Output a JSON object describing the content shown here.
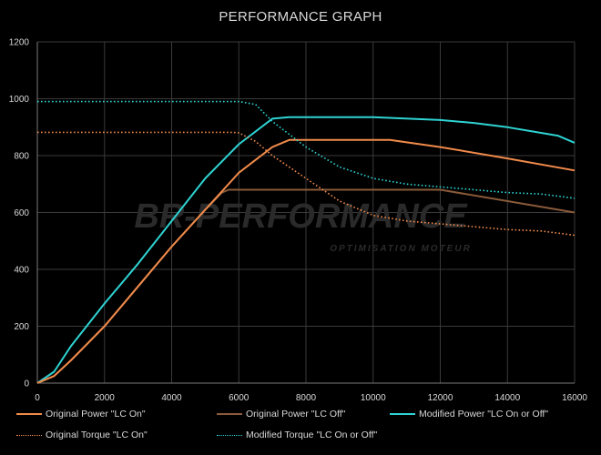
{
  "chart_data": {
    "type": "line",
    "title": "PERFORMANCE GRAPH",
    "xlabel": "",
    "ylabel": "",
    "xlim": [
      0,
      16000
    ],
    "ylim": [
      0,
      1200
    ],
    "xticks": [
      0,
      2000,
      4000,
      6000,
      8000,
      10000,
      12000,
      14000,
      16000
    ],
    "yticks": [
      0,
      200,
      400,
      600,
      800,
      1000,
      1200
    ],
    "grid": true,
    "legend_position": "bottom",
    "watermark": {
      "main": "BR-PERFORMANCE",
      "sub": "OPTIMISATION MOTEUR"
    },
    "series": [
      {
        "name": "Original Power \"LC On\"",
        "color": "#f08a4b",
        "style": "solid",
        "x": [
          0,
          500,
          1000,
          2000,
          3000,
          4000,
          5000,
          6000,
          7000,
          7500,
          8000,
          10500,
          12000,
          14000,
          16000
        ],
        "y": [
          0,
          25,
          80,
          200,
          340,
          480,
          610,
          740,
          830,
          855,
          855,
          855,
          830,
          790,
          748
        ]
      },
      {
        "name": "Original Power \"LC Off\"",
        "color": "#8a5a3a",
        "style": "solid",
        "x": [
          0,
          500,
          1000,
          2000,
          3000,
          4000,
          5000,
          5500,
          5700,
          12000,
          16000
        ],
        "y": [
          0,
          25,
          80,
          200,
          340,
          480,
          610,
          670,
          680,
          680,
          600
        ]
      },
      {
        "name": "Modified Power \"LC On or Off\"",
        "color": "#2fd3d3",
        "style": "solid",
        "x": [
          0,
          500,
          1000,
          2000,
          3000,
          4000,
          5000,
          6000,
          7000,
          7500,
          10000,
          12000,
          13000,
          14000,
          15000,
          15500,
          16000
        ],
        "y": [
          0,
          40,
          130,
          280,
          420,
          570,
          720,
          840,
          930,
          935,
          935,
          925,
          915,
          900,
          880,
          870,
          845
        ]
      },
      {
        "name": "Original Torque \"LC On\"",
        "color": "#f08a4b",
        "style": "dotted",
        "x": [
          0,
          5800,
          6000,
          6500,
          7000,
          8000,
          9000,
          10000,
          11000,
          12000,
          13000,
          14000,
          15000,
          16000
        ],
        "y": [
          882,
          882,
          880,
          850,
          800,
          720,
          640,
          590,
          570,
          560,
          550,
          540,
          535,
          520
        ]
      },
      {
        "name": "Modified Torque \"LC On or Off\"",
        "color": "#2fd3d3",
        "style": "dotted",
        "x": [
          0,
          6000,
          6500,
          7000,
          8000,
          9000,
          10000,
          11000,
          12000,
          13000,
          14000,
          15000,
          16000
        ],
        "y": [
          990,
          990,
          980,
          920,
          830,
          760,
          720,
          700,
          690,
          680,
          670,
          665,
          650
        ]
      }
    ]
  }
}
